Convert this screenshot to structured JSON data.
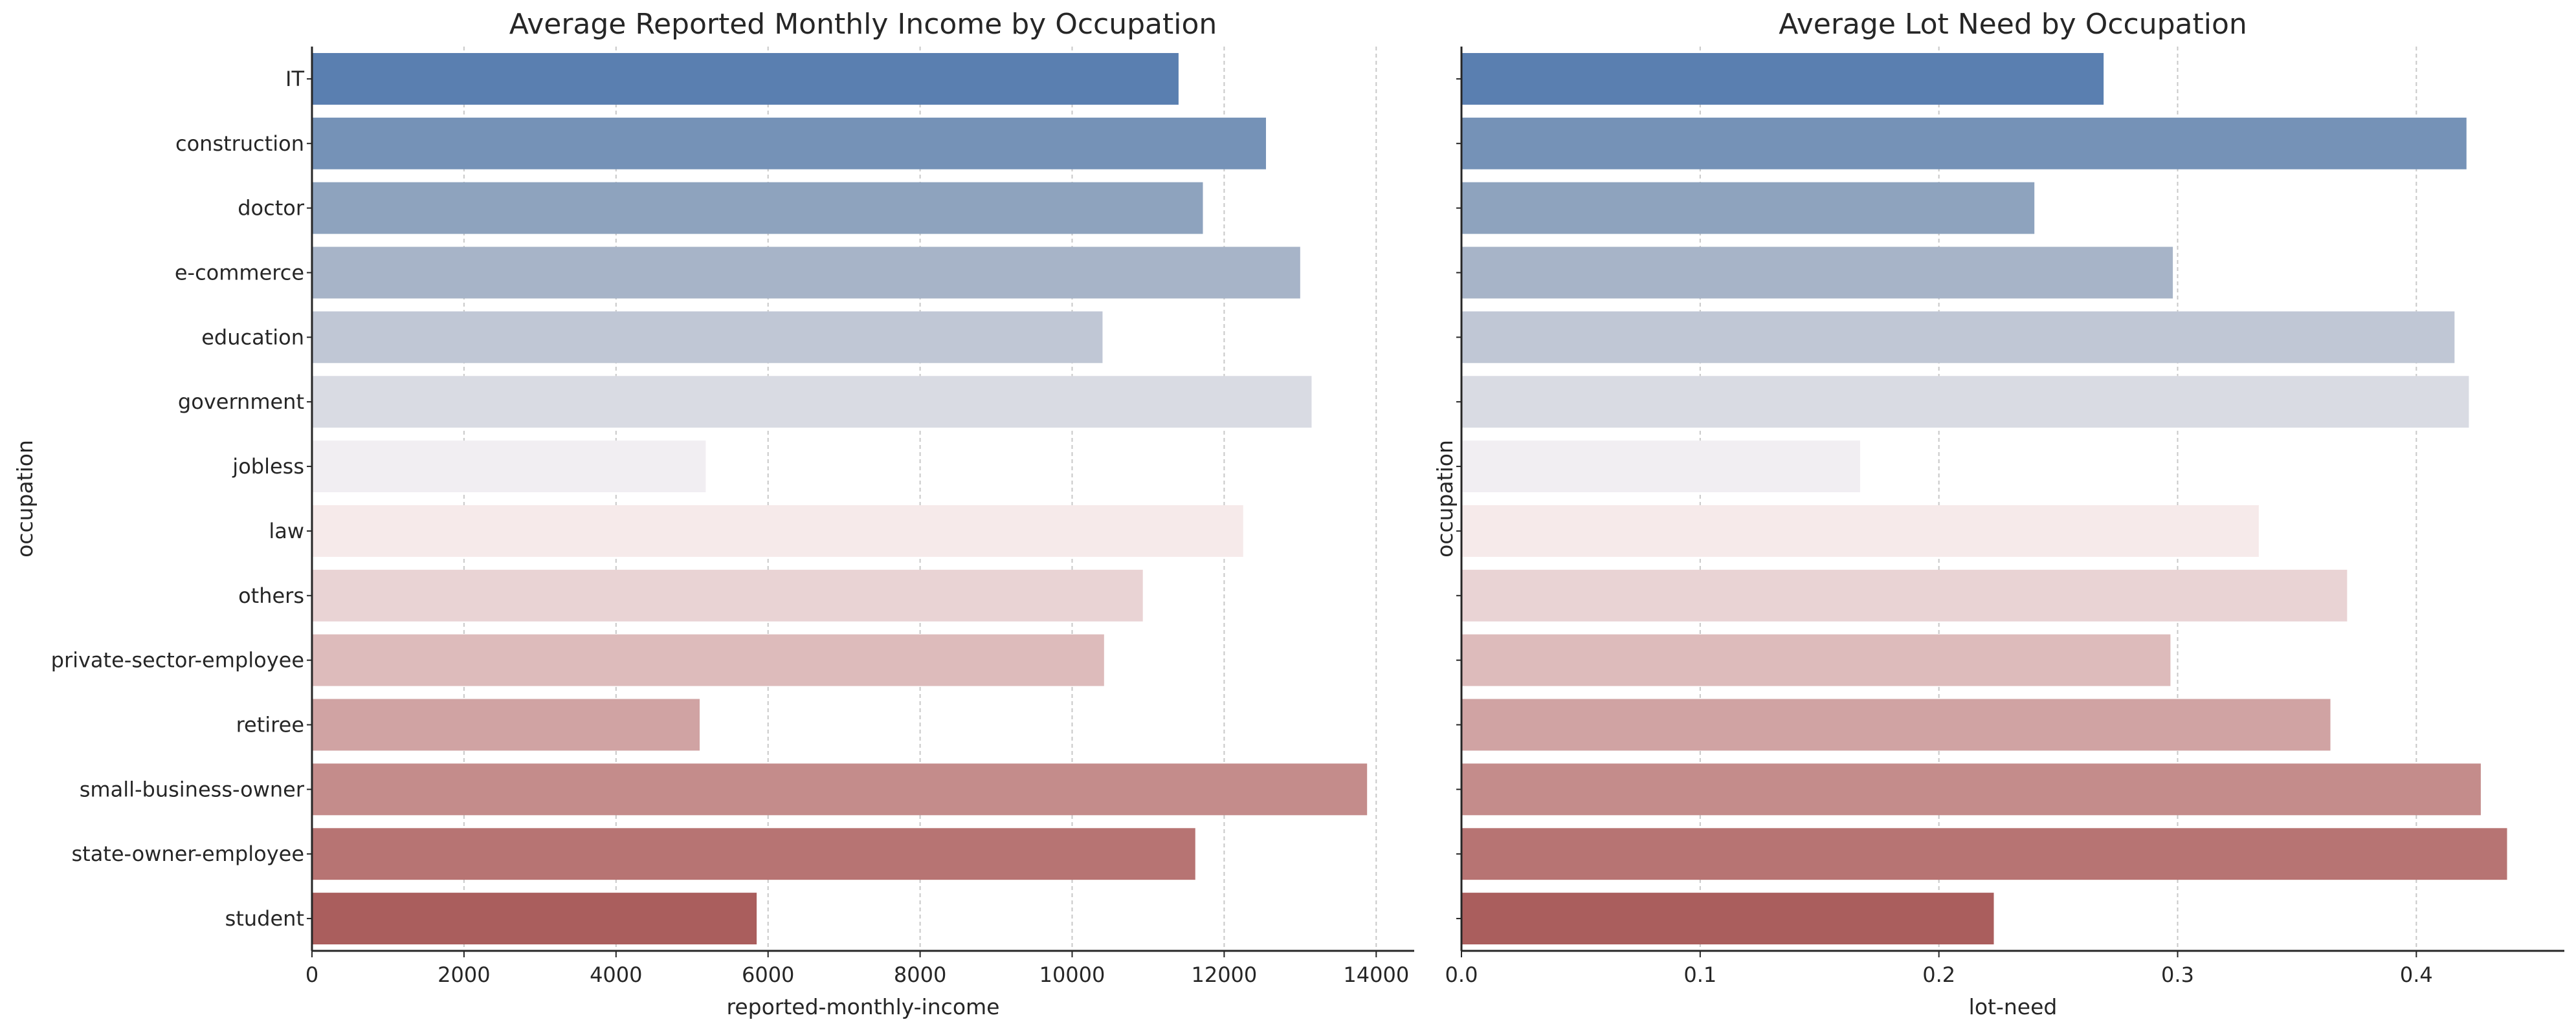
{
  "chart_data": [
    {
      "type": "bar",
      "orientation": "horizontal",
      "title": "Average Reported Monthly Income by Occupation",
      "xlabel": "reported-monthly-income",
      "ylabel": "occupation",
      "categories": [
        "IT",
        "construction",
        "doctor",
        "e-commerce",
        "education",
        "government",
        "jobless",
        "law",
        "others",
        "private-sector-employee",
        "retiree",
        "small-business-owner",
        "state-owner-employee",
        "student"
      ],
      "values": [
        11400,
        12550,
        11720,
        13000,
        10400,
        13150,
        5180,
        12250,
        10930,
        10420,
        5100,
        13880,
        11620,
        5850
      ],
      "xlim": [
        0,
        14500
      ],
      "xticks": [
        0,
        2000,
        4000,
        6000,
        8000,
        10000,
        12000,
        14000
      ],
      "xtick_labels": [
        "0",
        "2000",
        "4000",
        "6000",
        "8000",
        "10000",
        "12000",
        "14000"
      ],
      "grid": "x-dashed",
      "show_category_labels": true
    },
    {
      "type": "bar",
      "orientation": "horizontal",
      "title": "Average Lot Need by Occupation",
      "xlabel": "lot-need",
      "ylabel": "occupation",
      "categories": [
        "IT",
        "construction",
        "doctor",
        "e-commerce",
        "education",
        "government",
        "jobless",
        "law",
        "others",
        "private-sector-employee",
        "retiree",
        "small-business-owner",
        "state-owner-employee",
        "student"
      ],
      "values": [
        0.269,
        0.421,
        0.24,
        0.298,
        0.416,
        0.422,
        0.167,
        0.334,
        0.371,
        0.297,
        0.364,
        0.427,
        0.438,
        0.223
      ],
      "xlim": [
        0,
        0.462
      ],
      "xticks": [
        0.0,
        0.1,
        0.2,
        0.3,
        0.4
      ],
      "xtick_labels": [
        "0.0",
        "0.1",
        "0.2",
        "0.3",
        "0.4"
      ],
      "grid": "x-dashed",
      "show_category_labels": false
    }
  ],
  "bar_colors": [
    "#5a7fb0",
    "#7592b7",
    "#8ea3be",
    "#a7b4c8",
    "#c0c7d5",
    "#d9dbe3",
    "#f1eef2",
    "#f6eaea",
    "#e9d3d4",
    "#ddbbbb",
    "#d0a3a3",
    "#c48c8b",
    "#b77473",
    "#aa5e5d"
  ]
}
